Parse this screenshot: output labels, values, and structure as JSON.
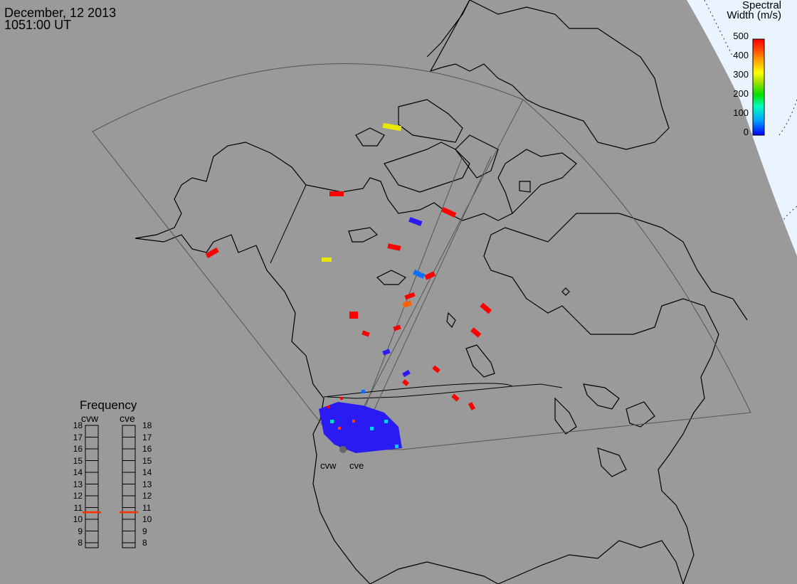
{
  "header": {
    "date": "December, 12 2013",
    "time": "1051:00 UT"
  },
  "colorbar": {
    "title_line1": "Spectral",
    "title_line2": "Width (m/s)",
    "ticks": [
      "500",
      "400",
      "300",
      "200",
      "100",
      "0"
    ],
    "gradient": [
      "#0000ff",
      "#00a0ff",
      "#00ffc0",
      "#00e000",
      "#a0e000",
      "#ffff00",
      "#ffa000",
      "#ff4000",
      "#ff0000"
    ]
  },
  "frequency_panel": {
    "title": "Frequency",
    "columns": [
      "cvw",
      "cve"
    ],
    "scale": [
      "18",
      "17",
      "16",
      "15",
      "14",
      "13",
      "12",
      "11",
      "10",
      "9",
      "8"
    ],
    "cvw_mhz": 10.6,
    "cve_mhz": 10.6,
    "marker_color": "#ff3000"
  },
  "sites": {
    "cvw": "cvw",
    "cve": "cve"
  },
  "colors": {
    "ocean": "#9a9a9a",
    "coast": "#000000",
    "fov": "#555555",
    "daylight": "#e8f4ff"
  }
}
